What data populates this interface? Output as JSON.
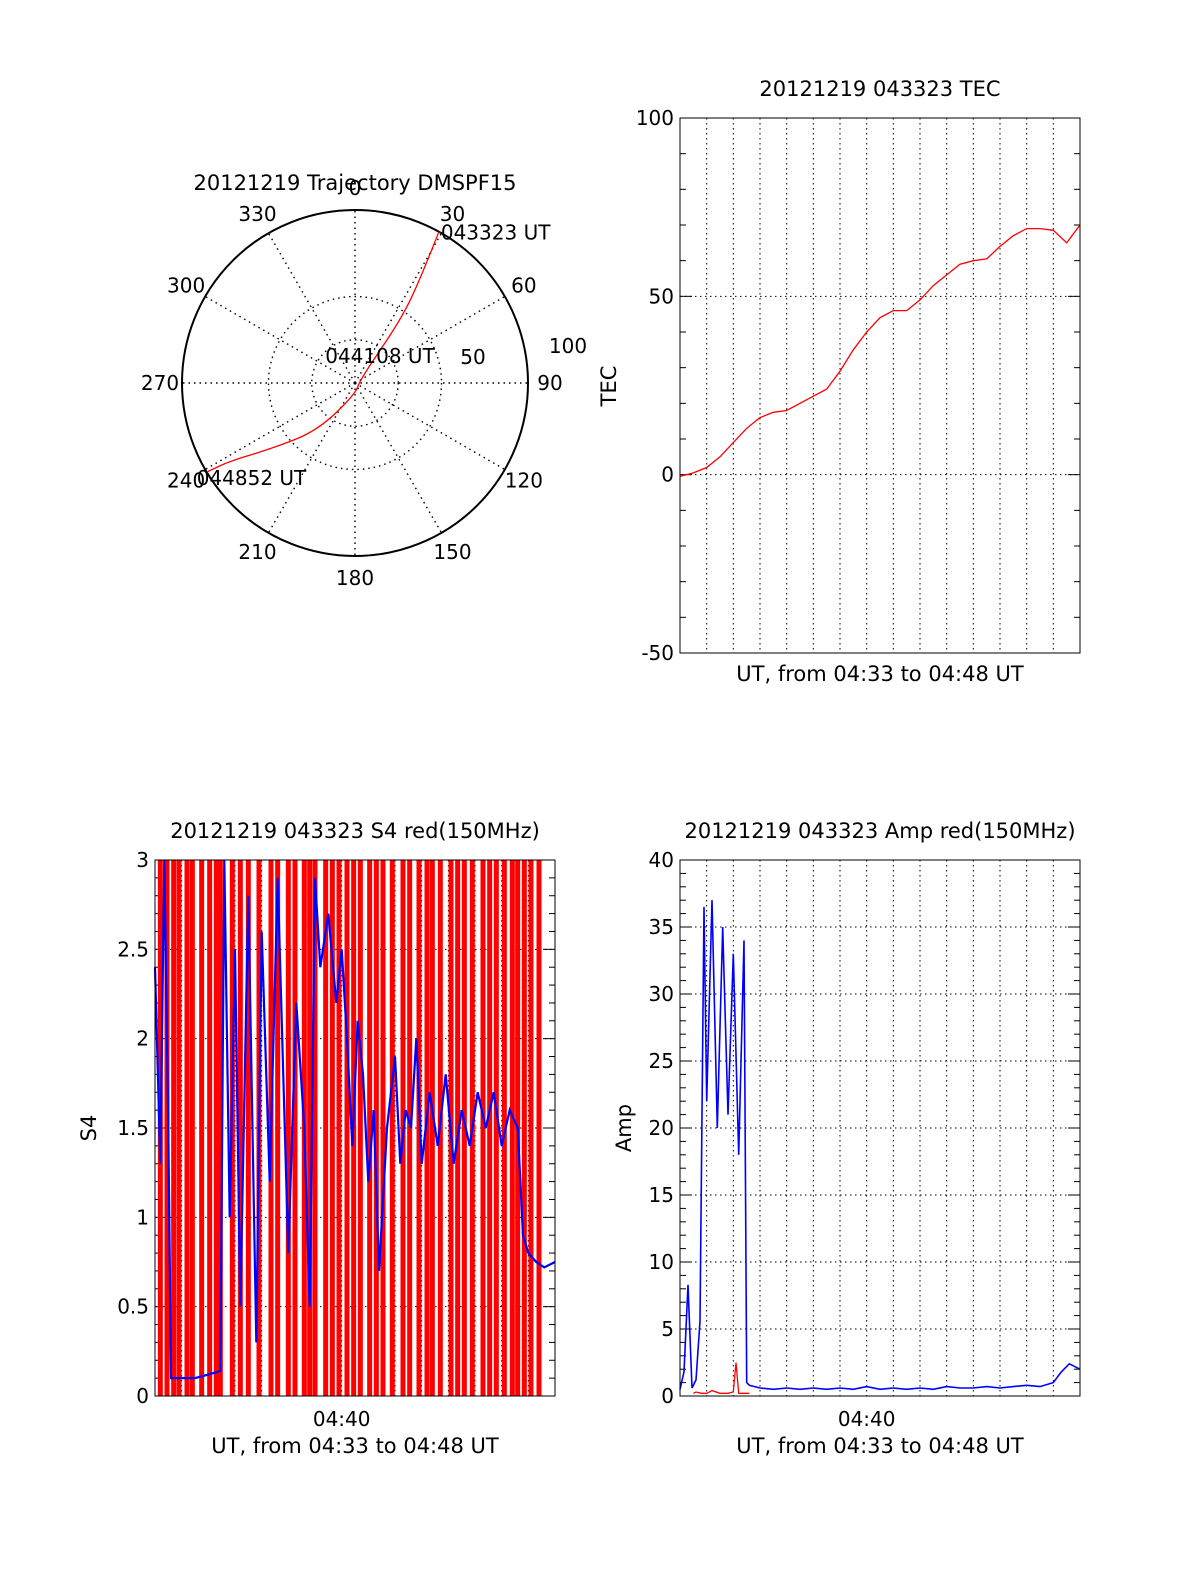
{
  "chart_data": [
    {
      "type": "polar",
      "title": "20121219 Trajectory DMSPF15",
      "angle_labels": [
        "0",
        "30",
        "60",
        "90",
        "120",
        "150",
        "180",
        "210",
        "240",
        "270",
        "300",
        "330"
      ],
      "angle_values": [
        0,
        30,
        60,
        90,
        120,
        150,
        180,
        210,
        240,
        270,
        300,
        330
      ],
      "radial_labels": [
        "50",
        "100"
      ],
      "radial_values": [
        50,
        100
      ],
      "rlim": [
        0,
        100
      ],
      "series": [
        {
          "color": "#ff0000",
          "points": [
            [
              29,
              100
            ],
            [
              32,
              72
            ],
            [
              36,
              45
            ],
            [
              60,
              3
            ],
            [
              175,
              6
            ],
            [
              218,
              35
            ],
            [
              232,
              62
            ],
            [
              238,
              85
            ],
            [
              239,
              100
            ]
          ]
        }
      ],
      "annotations": [
        {
          "text": "043323 UT",
          "azimuth": 29,
          "r": 100
        },
        {
          "text": "044108 UT",
          "azimuth": 0,
          "r": 0
        },
        {
          "text": "044852 UT",
          "azimuth": 239,
          "r": 100
        }
      ],
      "grid": true
    },
    {
      "type": "line",
      "title": "20121219 043323 TEC",
      "xlabel": "UT, from 04:33 to 04:48 UT",
      "ylabel": "TEC",
      "xlim": [
        0,
        15
      ],
      "ylim": [
        -50,
        100
      ],
      "yticks": [
        "100",
        "50",
        "0",
        "-50"
      ],
      "ytick_values": [
        100,
        50,
        0,
        -50
      ],
      "grid": true,
      "series": [
        {
          "color": "#ff0000",
          "x": [
            0,
            0.5,
            1.0,
            1.5,
            2.0,
            2.5,
            3.0,
            3.5,
            4.0,
            4.5,
            5.0,
            5.5,
            6.0,
            6.5,
            7.0,
            7.5,
            8.0,
            8.5,
            9.0,
            9.5,
            10.0,
            10.5,
            11.0,
            11.5,
            12.0,
            12.5,
            13.0,
            13.5,
            14.0,
            14.5,
            15.0
          ],
          "y": [
            -0.5,
            0.5,
            2,
            5,
            9,
            13,
            16,
            17.5,
            18,
            20,
            22,
            24,
            29,
            35,
            40,
            44,
            46,
            46,
            49,
            53,
            56,
            59,
            60,
            60.5,
            64,
            67,
            69,
            69,
            68.5,
            65,
            70
          ]
        }
      ]
    },
    {
      "type": "line",
      "title": "20121219 043323 S4 red(150MHz)",
      "xlabel": "UT, from 04:33 to 04:48 UT",
      "ylabel": "S4",
      "xtick": "04:40",
      "xtick_value": 7,
      "xlim": [
        0,
        15
      ],
      "ylim": [
        0,
        3
      ],
      "yticks": [
        "3",
        "2.5",
        "2",
        "1.5",
        "1",
        "0.5",
        "0"
      ],
      "ytick_values": [
        3,
        2.5,
        2,
        1.5,
        1,
        0.5,
        0
      ],
      "grid": true,
      "series": [
        {
          "color": "#ff0000",
          "x": [
            0.2,
            0.45,
            0.7,
            0.9,
            1.2,
            1.4,
            1.75,
            2.05,
            2.3,
            2.45,
            2.9,
            3.2,
            3.5,
            3.9,
            4.35,
            4.6,
            5.0,
            5.25,
            5.6,
            5.8,
            6.0,
            6.4,
            6.65,
            6.9,
            7.2,
            7.45,
            7.7,
            8.05,
            8.3,
            8.55,
            8.9,
            9.3,
            9.55,
            9.9,
            10.2,
            10.4,
            10.7,
            11.1,
            11.35,
            11.6,
            11.9,
            12.3,
            12.55,
            12.8,
            13.1,
            13.4,
            13.6,
            13.85,
            14.1,
            14.4
          ],
          "y": [
            3,
            3,
            3,
            3,
            3,
            3,
            3,
            3,
            3,
            3,
            3,
            3,
            3,
            3,
            3,
            3,
            3,
            3,
            3,
            3,
            3,
            3,
            3,
            3,
            3,
            3,
            3,
            3,
            3,
            3,
            3,
            3,
            3,
            3,
            3,
            3,
            3,
            3,
            3,
            3,
            3,
            3,
            3,
            3,
            3,
            3,
            3,
            3,
            3,
            3
          ]
        },
        {
          "color": "#0000ff",
          "x": [
            0,
            0.2,
            0.35,
            0.5,
            0.6,
            1.0,
            1.5,
            2.0,
            2.45,
            2.6,
            2.8,
            3.0,
            3.2,
            3.5,
            3.8,
            4.0,
            4.3,
            4.6,
            5.0,
            5.3,
            5.6,
            5.8,
            6.0,
            6.2,
            6.5,
            6.8,
            7.0,
            7.2,
            7.4,
            7.6,
            7.8,
            8.0,
            8.2,
            8.4,
            8.7,
            9.0,
            9.2,
            9.4,
            9.6,
            9.8,
            10.0,
            10.3,
            10.6,
            10.9,
            11.2,
            11.5,
            11.8,
            12.1,
            12.4,
            12.7,
            13.0,
            13.3,
            13.6,
            13.8,
            14.0,
            14.3,
            14.6,
            15.0
          ],
          "y": [
            2.4,
            1.3,
            3.0,
            1.5,
            0.1,
            0.1,
            0.1,
            0.12,
            0.14,
            3.0,
            1.0,
            2.5,
            0.5,
            2.8,
            0.3,
            2.6,
            1.2,
            2.9,
            0.8,
            2.2,
            1.5,
            0.5,
            2.9,
            2.4,
            2.7,
            2.2,
            2.5,
            2.0,
            1.4,
            2.1,
            1.8,
            1.2,
            1.6,
            0.7,
            1.5,
            1.9,
            1.3,
            1.6,
            1.5,
            2.0,
            1.3,
            1.7,
            1.4,
            1.8,
            1.3,
            1.6,
            1.4,
            1.7,
            1.5,
            1.7,
            1.4,
            1.6,
            1.5,
            0.9,
            0.8,
            0.75,
            0.72,
            0.75
          ]
        }
      ]
    },
    {
      "type": "line",
      "title": "20121219 043323 Amp red(150MHz)",
      "xlabel": "UT, from 04:33 to 04:48 UT",
      "ylabel": "Amp",
      "xtick": "04:40",
      "xtick_value": 7,
      "xlim": [
        0,
        15
      ],
      "ylim": [
        0,
        40
      ],
      "yticks": [
        "40",
        "35",
        "30",
        "25",
        "20",
        "15",
        "10",
        "5",
        "0"
      ],
      "ytick_values": [
        40,
        35,
        30,
        25,
        20,
        15,
        10,
        5,
        0
      ],
      "grid": true,
      "series": [
        {
          "color": "#ff0000",
          "x": [
            0.5,
            0.6,
            0.8,
            1.0,
            1.2,
            1.5,
            1.8,
            2.0,
            2.1,
            2.2,
            2.4,
            2.6
          ],
          "y": [
            0.2,
            0.3,
            0.2,
            0.2,
            0.4,
            0.2,
            0.2,
            0.3,
            2.5,
            0.2,
            0.2,
            0.2
          ]
        },
        {
          "color": "#0000ff",
          "x": [
            0,
            0.15,
            0.3,
            0.45,
            0.6,
            0.75,
            0.9,
            1.0,
            1.2,
            1.4,
            1.6,
            1.8,
            2.0,
            2.2,
            2.4,
            2.5,
            2.6,
            2.8,
            3.0,
            3.5,
            4.0,
            4.5,
            5.0,
            5.5,
            6.0,
            6.5,
            7.0,
            7.5,
            8.0,
            8.5,
            9.0,
            9.5,
            10.0,
            10.5,
            11.0,
            11.5,
            12.0,
            12.5,
            13.0,
            13.5,
            14.0,
            14.3,
            14.6,
            15.0
          ],
          "y": [
            0.5,
            1.8,
            8.3,
            0.6,
            1.2,
            5.6,
            36.5,
            22,
            37,
            20,
            35,
            21,
            33,
            18,
            34,
            1,
            0.8,
            0.7,
            0.6,
            0.5,
            0.6,
            0.5,
            0.6,
            0.5,
            0.6,
            0.5,
            0.7,
            0.5,
            0.6,
            0.5,
            0.6,
            0.5,
            0.7,
            0.6,
            0.6,
            0.7,
            0.6,
            0.7,
            0.8,
            0.7,
            1.0,
            1.8,
            2.4,
            2.0
          ]
        }
      ]
    }
  ]
}
